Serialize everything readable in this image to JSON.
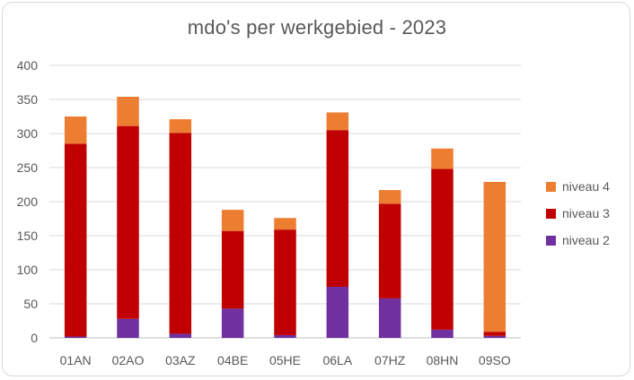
{
  "chart_data": {
    "type": "bar",
    "stacked": true,
    "title": "mdo's per werkgebied - 2023",
    "categories": [
      "01AN",
      "02AO",
      "03AZ",
      "04BE",
      "05HE",
      "06LA",
      "07HZ",
      "08HN",
      "09SO"
    ],
    "series": [
      {
        "name": "niveau 2",
        "color": "#7030a0",
        "values": [
          2,
          28,
          6,
          43,
          4,
          75,
          58,
          12,
          3
        ]
      },
      {
        "name": "niveau 3",
        "color": "#c00000",
        "values": [
          283,
          283,
          295,
          114,
          155,
          230,
          139,
          236,
          6
        ]
      },
      {
        "name": "niveau 4",
        "color": "#ed7d31",
        "values": [
          40,
          43,
          20,
          31,
          17,
          26,
          20,
          30,
          220
        ]
      }
    ],
    "ylim": [
      0,
      400
    ],
    "yticks": [
      "0",
      "50",
      "100",
      "150",
      "200",
      "250",
      "300",
      "350",
      "400"
    ],
    "grid": true,
    "legend_position": "right",
    "legend_order": [
      "niveau 4",
      "niveau 3",
      "niveau 2"
    ]
  }
}
